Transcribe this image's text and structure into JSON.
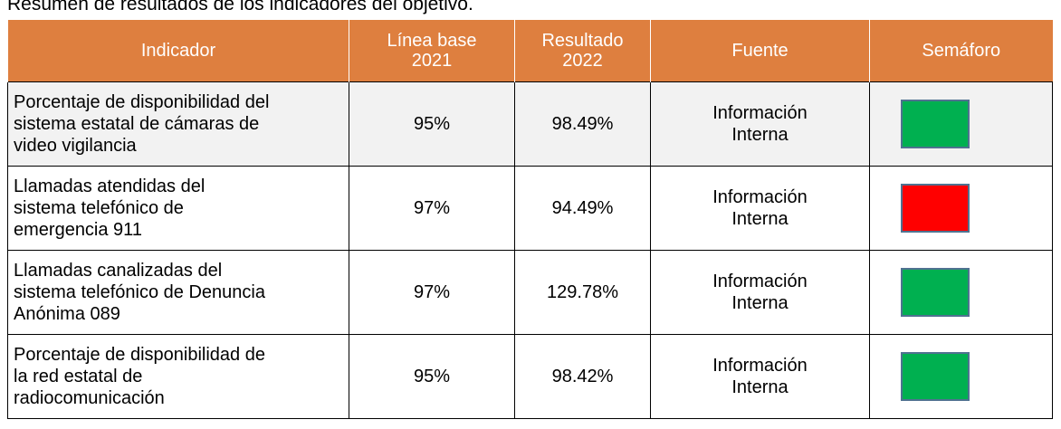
{
  "title": "Resumen de resultados de los indicadores del objetivo.",
  "table": {
    "header": [
      "Indicador",
      "Línea base 2021",
      "Resultado 2022",
      "Fuente",
      "Semáforo"
    ],
    "header_color": "#de7f3f",
    "rows": [
      {
        "indicador": "Porcentaje de disponibilidad del sistema estatal de cámaras de video vigilancia",
        "linea_base": "95%",
        "resultado": "98.49%",
        "fuente": "Información Interna",
        "semaforo": "#00b050"
      },
      {
        "indicador": "Llamadas atendidas del sistema telefónico de emergencia 911",
        "linea_base": "97%",
        "resultado": "94.49%",
        "fuente": "Información Interna",
        "semaforo": "#ff0000"
      },
      {
        "indicador": "Llamadas canalizadas del sistema telefónico de Denuncia Anónima 089",
        "linea_base": "97%",
        "resultado": "129.78%",
        "fuente": "Información Interna",
        "semaforo": "#00b050"
      },
      {
        "indicador": "Porcentaje de disponibilidad de la red estatal de radiocomunicación",
        "linea_base": "95%",
        "resultado": "98.42%",
        "fuente": "Información Interna",
        "semaforo": "#00b050"
      }
    ]
  }
}
